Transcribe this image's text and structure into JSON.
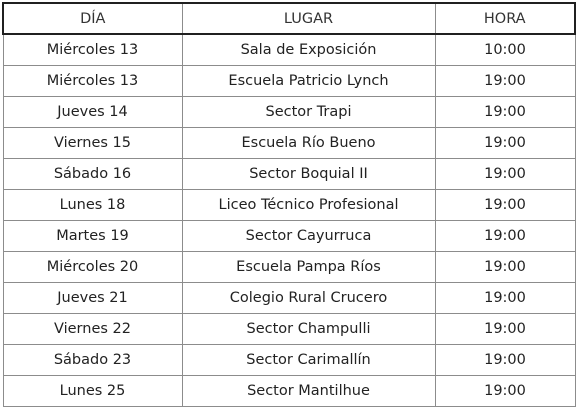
{
  "headers": {
    "dia": "DÍA",
    "lugar": "LUGAR",
    "hora": "HORA"
  },
  "rows": [
    {
      "dia": "Miércoles 13",
      "lugar": "Sala de Exposición",
      "hora": "10:00"
    },
    {
      "dia": "Miércoles 13",
      "lugar": "Escuela Patricio Lynch",
      "hora": "19:00"
    },
    {
      "dia": "Jueves 14",
      "lugar": "Sector Trapi",
      "hora": "19:00"
    },
    {
      "dia": "Viernes 15",
      "lugar": "Escuela Río Bueno",
      "hora": "19:00"
    },
    {
      "dia": "Sábado 16",
      "lugar": "Sector Boquial II",
      "hora": "19:00"
    },
    {
      "dia": "Lunes 18",
      "lugar": "Liceo Técnico Profesional",
      "hora": "19:00"
    },
    {
      "dia": "Martes 19",
      "lugar": "Sector Cayurruca",
      "hora": "19:00"
    },
    {
      "dia": "Miércoles 20",
      "lugar": "Escuela Pampa Ríos",
      "hora": "19:00"
    },
    {
      "dia": "Jueves 21",
      "lugar": "Colegio Rural Crucero",
      "hora": "19:00"
    },
    {
      "dia": "Viernes 22",
      "lugar": "Sector Champulli",
      "hora": "19:00"
    },
    {
      "dia": "Sábado 23",
      "lugar": "Sector Carimallín",
      "hora": "19:00"
    },
    {
      "dia": "Lunes 25",
      "lugar": "Sector Mantilhue",
      "hora": "19:00"
    }
  ]
}
